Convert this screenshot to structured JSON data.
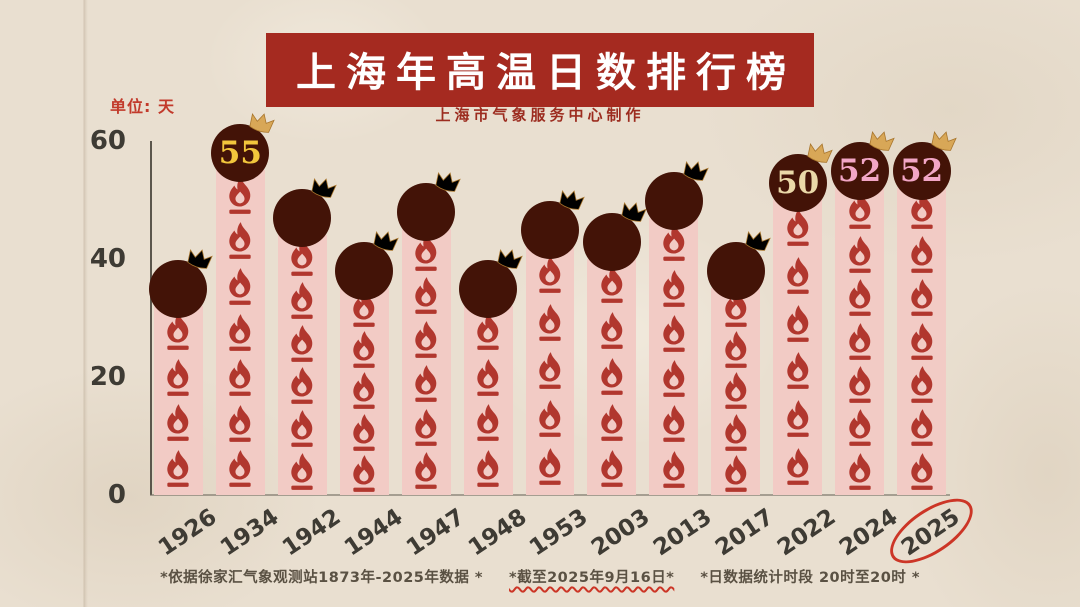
{
  "page": {
    "title_banner": "上海年高温日数排行榜",
    "subtitle": "上海市气象服务中心制作",
    "unit_label": "单位: 天"
  },
  "chart_data": {
    "type": "bar",
    "title": "上海年高温日数排行榜",
    "categories": [
      "1926",
      "1934",
      "1942",
      "1944",
      "1947",
      "1948",
      "1953",
      "2003",
      "2013",
      "2017",
      "2022",
      "2024",
      "2025"
    ],
    "values": [
      32,
      55,
      44,
      35,
      45,
      32,
      42,
      40,
      47,
      35,
      50,
      52,
      52
    ],
    "ylabel": "单位: 天",
    "ylim": [
      0,
      60
    ],
    "yticks": [
      0,
      20,
      40,
      60
    ],
    "grid": false,
    "legend": "none",
    "crowned_bars": [
      {
        "category": "1934",
        "value": 55,
        "number_color": "#f2c63c"
      },
      {
        "category": "2022",
        "value": 50,
        "number_color": "#ead8a8"
      },
      {
        "category": "2024",
        "value": 52,
        "number_color": "#f2a6c6"
      },
      {
        "category": "2025",
        "value": 52,
        "number_color": "#f2a6c6"
      }
    ],
    "circled_category": "2025"
  },
  "footnotes": [
    "*依据徐家汇气象观测站1873年-2025年数据 *",
    "*截至2025年9月16日*",
    "*日数据统计时段 20时至20时 *"
  ],
  "colors": {
    "paper": "#e9dfd0",
    "banner_bg": "#a52a20",
    "banner_text": "#ffffff",
    "subtitle": "#9c2c1f",
    "unit": "#c23a2b",
    "axis_text": "#3e3b34",
    "bar_fill": "#f2cbc5",
    "flame": "#b1372e",
    "bubble_bg": "#431307",
    "crown": "#d8a757",
    "highlight": "#cc3526",
    "footnote": "#5a5143"
  }
}
